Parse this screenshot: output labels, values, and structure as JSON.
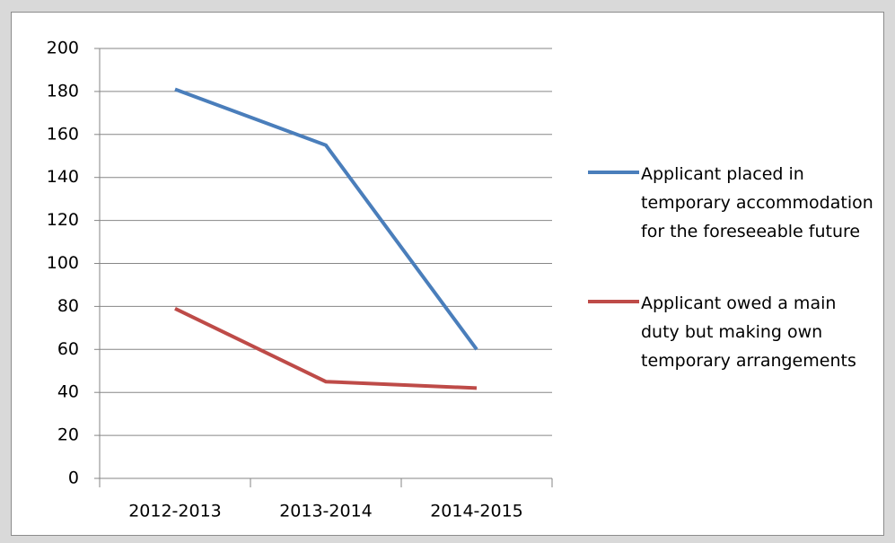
{
  "chart_data": {
    "type": "line",
    "categories": [
      "2012-2013",
      "2013-2014",
      "2014-2015"
    ],
    "series": [
      {
        "name": "Applicant placed in temporary accommodation for the foreseeable future",
        "color": "#4a7ebb",
        "values": [
          181,
          155,
          60
        ]
      },
      {
        "name": "Applicant owed a main duty but making own temporary arrangements",
        "color": "#be4b48",
        "values": [
          79,
          45,
          42
        ]
      }
    ],
    "ylim": [
      0,
      200
    ],
    "yticks": [
      0,
      20,
      40,
      60,
      80,
      100,
      120,
      140,
      160,
      180,
      200
    ],
    "grid": true,
    "legend": "right"
  }
}
